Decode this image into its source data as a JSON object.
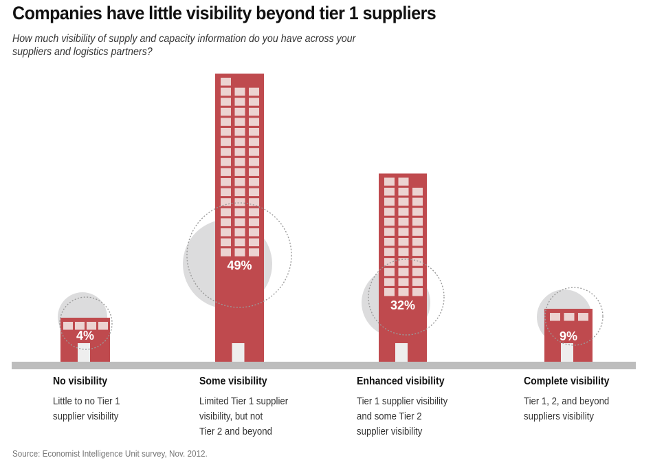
{
  "colors": {
    "building": "#bf4a4e",
    "window": "#ecd3d1",
    "door": "#eeeeee",
    "circle": "#dcdcdd",
    "dashed_circle": "#9a9a9a",
    "ground": "#bdbdbd",
    "label_text": "#ffffff"
  },
  "chart_data": {
    "type": "bar",
    "style": "pictogram-buildings",
    "title": "Companies have little visibility beyond tier 1 suppliers",
    "subtitle": "How much visibility of supply and capacity information do you have across your suppliers and logistics partners?",
    "categories": [
      "No visibility",
      "Some visibility",
      "Enhanced visibility",
      "Complete visibility"
    ],
    "descriptions": [
      [
        "Little to no Tier 1",
        "supplier visibility"
      ],
      [
        "Limited Tier 1 supplier",
        "visibility, but not",
        "Tier 2 and beyond"
      ],
      [
        "Tier 1 supplier visibility",
        "and some Tier 2",
        "supplier visibility"
      ],
      [
        "Tier 1, 2, and beyond",
        "suppliers visibility"
      ]
    ],
    "values": [
      4,
      49,
      32,
      9
    ],
    "value_labels": [
      "4%",
      "49%",
      "32%",
      "9%"
    ],
    "unit": "%",
    "source": "Source: Economist Intelligence Unit survey, Nov. 2012."
  }
}
